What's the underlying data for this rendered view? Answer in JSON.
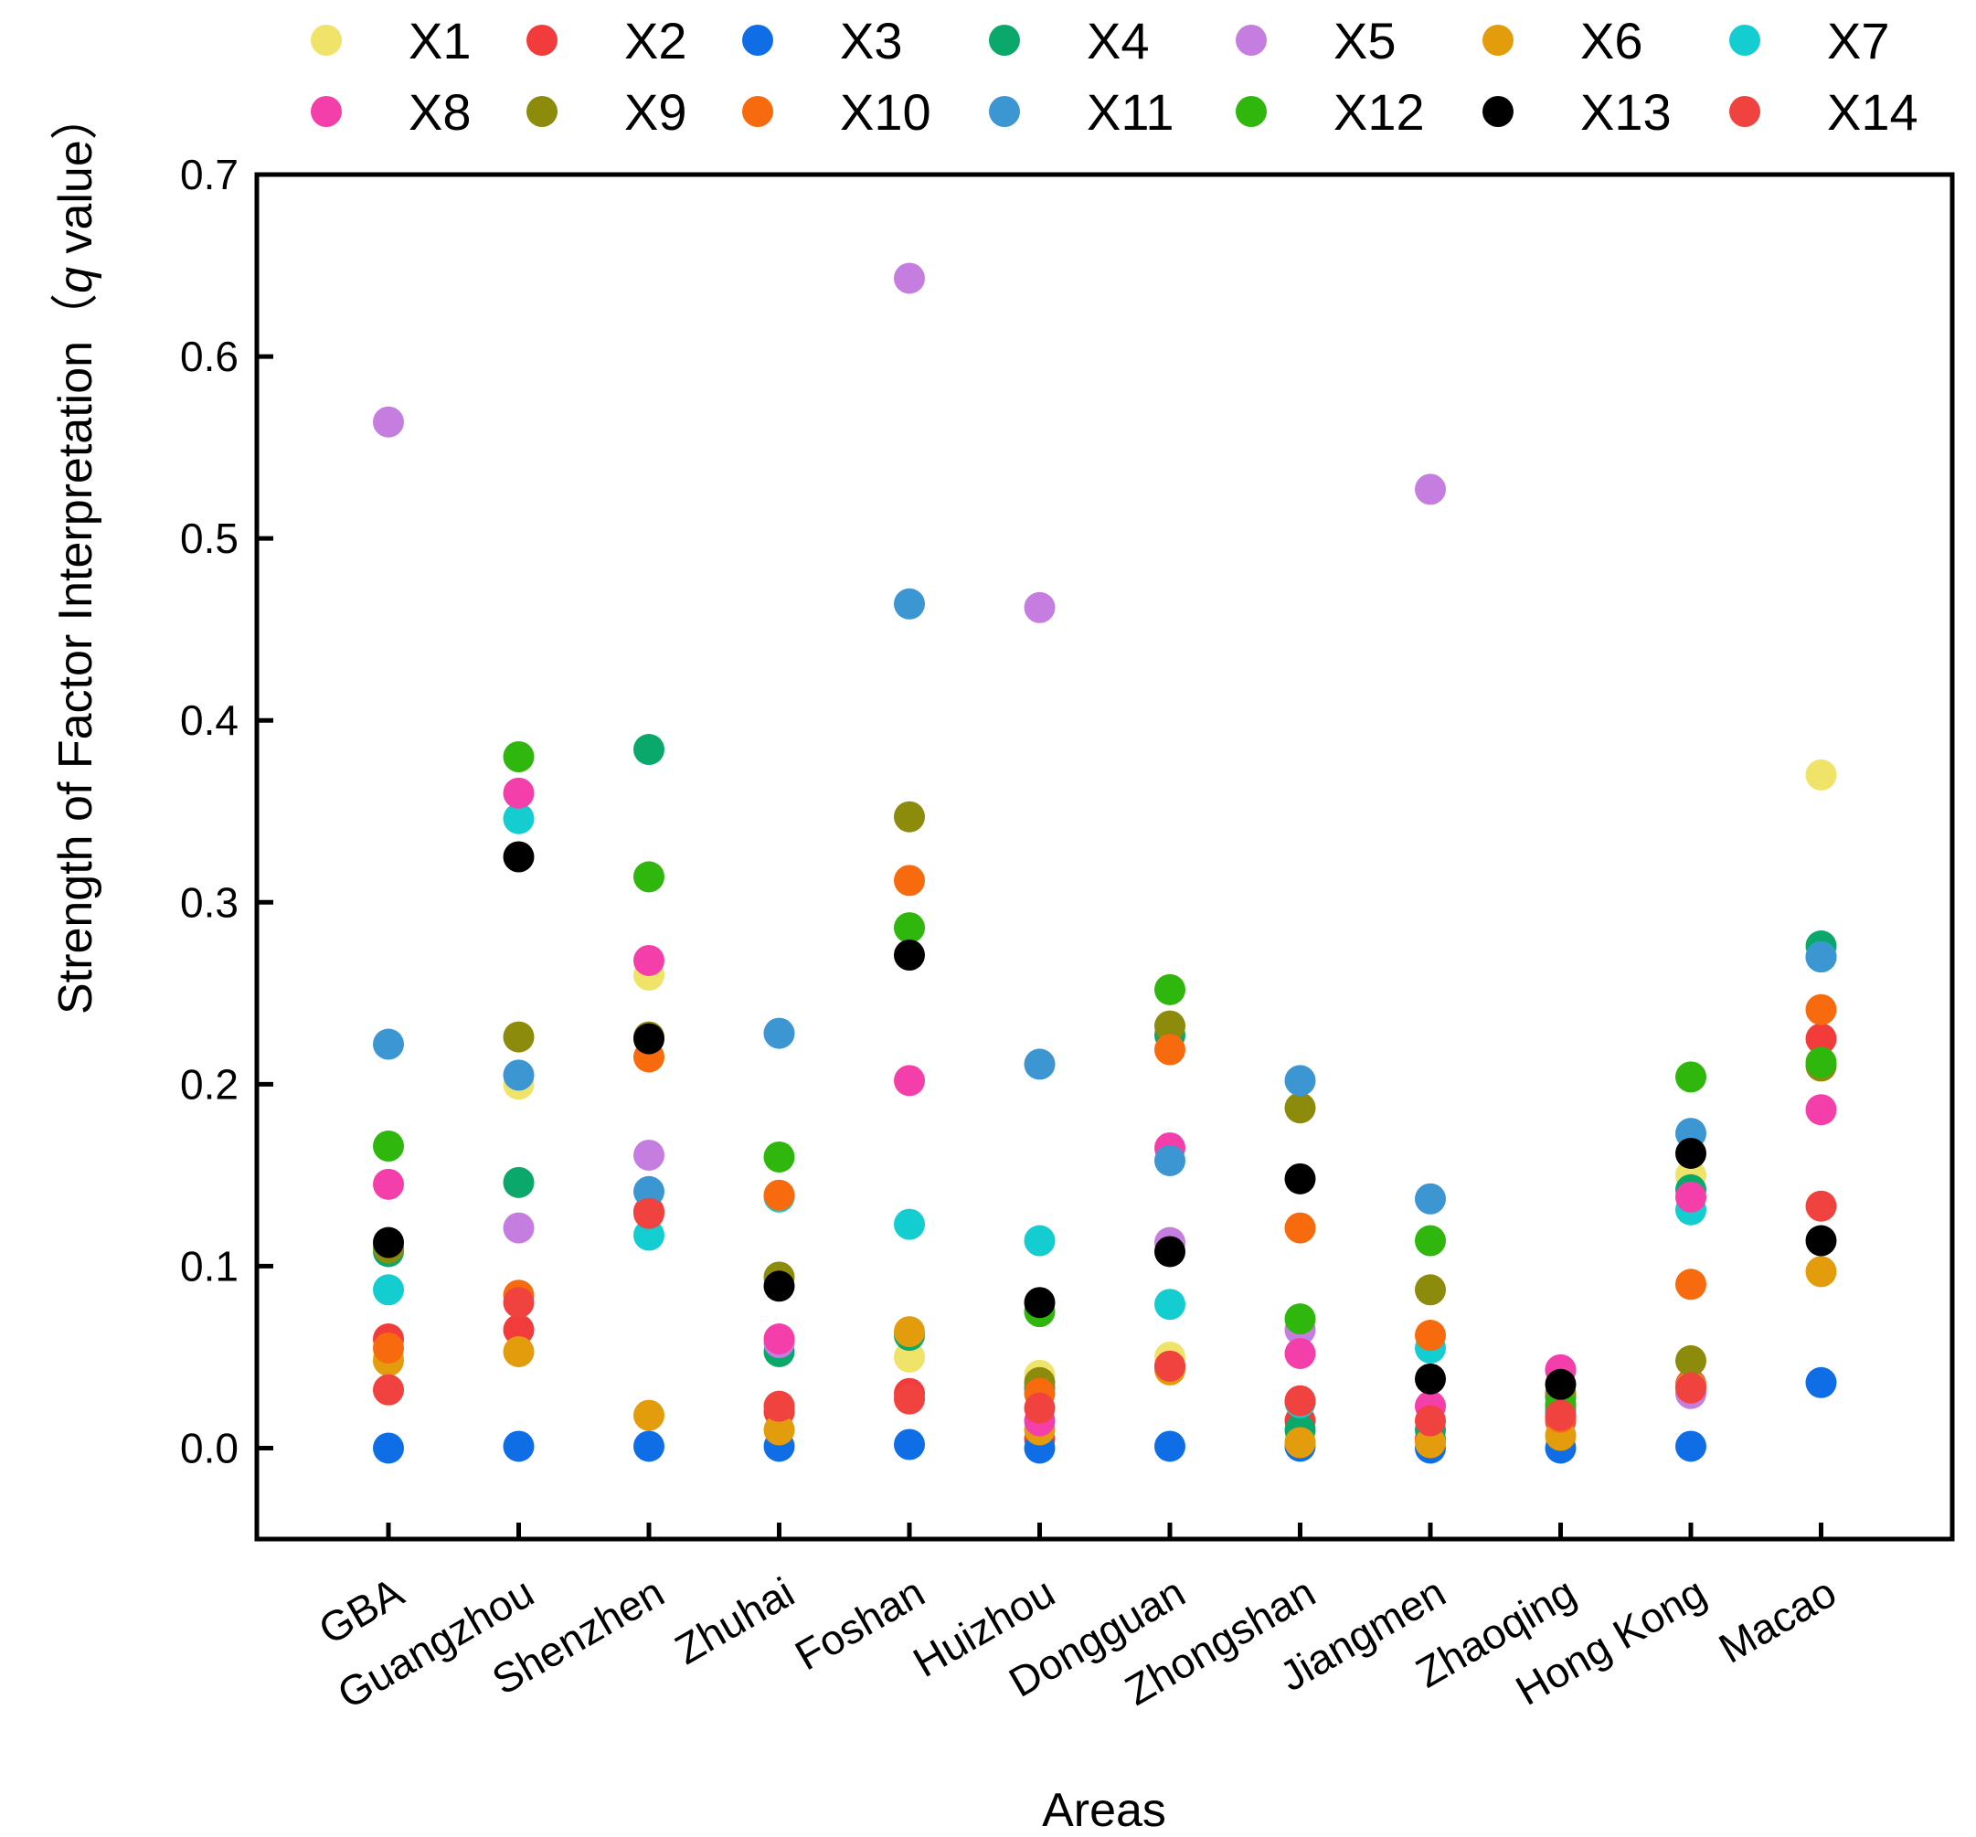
{
  "chart_data": {
    "type": "scatter",
    "title": "",
    "xlabel": "Areas",
    "ylabel": "Strength of Factor Interpretation（q value）",
    "ylabel_parts": {
      "prefix": "Strength of Factor Interpretation（",
      "italic": "q",
      "suffix": " value）"
    },
    "ylim": [
      -0.05,
      0.7
    ],
    "yticks": [
      "0.0",
      "0.1",
      "0.2",
      "0.3",
      "0.4",
      "0.5",
      "0.6",
      "0.7"
    ],
    "ytick_values": [
      0.0,
      0.1,
      0.2,
      0.3,
      0.4,
      0.5,
      0.6,
      0.7
    ],
    "categories": [
      "GBA",
      "Guangzhou",
      "Shenzhen",
      "Zhuhai",
      "Foshan",
      "Huizhou",
      "Dongguan",
      "Zhongshan",
      "Jiangmen",
      "Zhaoqing",
      "Hong Kong",
      "Macao"
    ],
    "legend_position": "top",
    "grid": false,
    "series": [
      {
        "name": "X1",
        "color": "#efe36a",
        "values": [
          0.05,
          0.2,
          0.26,
          0.02,
          0.05,
          0.04,
          0.05,
          0.005,
          0.005,
          0.005,
          0.15,
          0.37
        ]
      },
      {
        "name": "X2",
        "color": "#f23c3c",
        "values": [
          0.06,
          0.065,
          0.13,
          0.02,
          0.03,
          0.005,
          0.045,
          0.015,
          0.005,
          0.015,
          0.035,
          0.225
        ]
      },
      {
        "name": "X3",
        "color": "#0f6ee6",
        "values": [
          0.0,
          0.001,
          0.001,
          0.001,
          0.002,
          0.0,
          0.001,
          0.001,
          0.0,
          0.0,
          0.001,
          0.036
        ]
      },
      {
        "name": "X4",
        "color": "#0aa86b",
        "values": [
          0.108,
          0.146,
          0.384,
          0.053,
          0.062,
          0.033,
          0.227,
          0.01,
          0.01,
          0.028,
          0.142,
          0.276
        ]
      },
      {
        "name": "X5",
        "color": "#c57ee0",
        "values": [
          0.564,
          0.121,
          0.161,
          0.058,
          0.643,
          0.462,
          0.113,
          0.065,
          0.527,
          0.043,
          0.03,
          0.27
        ]
      },
      {
        "name": "X6",
        "color": "#e39c0c",
        "values": [
          0.048,
          0.053,
          0.018,
          0.01,
          0.064,
          0.01,
          0.043,
          0.003,
          0.003,
          0.007,
          0.034,
          0.097
        ]
      },
      {
        "name": "X7",
        "color": "#13cdd1",
        "values": [
          0.087,
          0.346,
          0.117,
          0.138,
          0.123,
          0.114,
          0.079,
          0.025,
          0.055,
          0.02,
          0.131,
          0.27
        ]
      },
      {
        "name": "X8",
        "color": "#f43ea9",
        "values": [
          0.145,
          0.36,
          0.268,
          0.06,
          0.202,
          0.015,
          0.165,
          0.052,
          0.023,
          0.043,
          0.138,
          0.186
        ]
      },
      {
        "name": "X9",
        "color": "#8c8b0c",
        "values": [
          0.11,
          0.226,
          0.226,
          0.094,
          0.347,
          0.036,
          0.232,
          0.187,
          0.087,
          0.03,
          0.048,
          0.21
        ]
      },
      {
        "name": "X10",
        "color": "#f76b0e",
        "values": [
          0.055,
          0.084,
          0.215,
          0.139,
          0.312,
          0.03,
          0.219,
          0.121,
          0.062,
          0.017,
          0.09,
          0.241
        ]
      },
      {
        "name": "X11",
        "color": "#3c96d2",
        "values": [
          0.222,
          0.205,
          0.141,
          0.228,
          0.464,
          0.211,
          0.158,
          0.202,
          0.137,
          0.022,
          0.173,
          0.27
        ]
      },
      {
        "name": "X12",
        "color": "#2fb70d",
        "values": [
          0.166,
          0.38,
          0.314,
          0.16,
          0.286,
          0.075,
          0.252,
          0.071,
          0.114,
          0.024,
          0.204,
          0.212
        ]
      },
      {
        "name": "X13",
        "color": "#000000",
        "values": [
          0.113,
          0.325,
          0.225,
          0.089,
          0.271,
          0.08,
          0.108,
          0.148,
          0.038,
          0.035,
          0.162,
          0.114
        ]
      },
      {
        "name": "X14",
        "color": "#f0433f",
        "values": [
          0.032,
          0.08,
          0.129,
          0.023,
          0.027,
          0.022,
          0.045,
          0.026,
          0.015,
          0.018,
          0.033,
          0.133
        ]
      }
    ]
  }
}
